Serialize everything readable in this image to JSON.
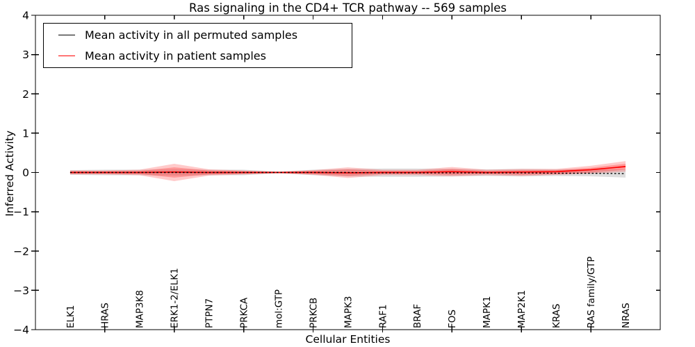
{
  "legend": {
    "position": "upper left",
    "entries": [
      {
        "label": "Mean activity in all permuted samples",
        "color": "#000000"
      },
      {
        "label": "Mean activity in patient samples",
        "color": "#ff0000"
      }
    ]
  },
  "chart_data": {
    "type": "line",
    "title": "Ras signaling in the CD4+ TCR pathway -- 569 samples",
    "xlabel": "Cellular Entities",
    "ylabel": "Inferred Activity",
    "ylim": [
      -4,
      4
    ],
    "xlim": [
      0,
      18
    ],
    "grid": false,
    "yticks": [
      -4,
      -3,
      -2,
      -1,
      0,
      1,
      2,
      3,
      4
    ],
    "ytick_labels": [
      "−4",
      "−3",
      "−2",
      "−1",
      "0",
      "1",
      "2",
      "3",
      "4"
    ],
    "x_tick_mark_positions": [
      2,
      4,
      6,
      8,
      10,
      12,
      14,
      16
    ],
    "categories": [
      "ELK1",
      "HRAS",
      "MAP3K8",
      "ERK1-2/ELK1",
      "PTPN7",
      "PRKCA",
      "mol:GTP",
      "PRKCB",
      "MAPK3",
      "RAF1",
      "BRAF",
      "FOS",
      "MAPK1",
      "MAP2K1",
      "KRAS",
      "RAS family/GTP",
      "NRAS"
    ],
    "series": [
      {
        "name": "Mean activity in all permuted samples",
        "color": "#000000",
        "linestyle": "dashed-overlay",
        "values": [
          0,
          0,
          0,
          0,
          0,
          0,
          0,
          0,
          0,
          -0.01,
          -0.01,
          -0.01,
          -0.01,
          -0.01,
          -0.02,
          -0.02,
          -0.03
        ]
      },
      {
        "name": "Mean activity in patient samples",
        "color": "#ff0000",
        "linestyle": "solid",
        "values": [
          0,
          0,
          0,
          0.01,
          0,
          0,
          0,
          0,
          -0.01,
          0,
          0,
          0.02,
          0,
          0.01,
          0.02,
          0.07,
          0.15
        ]
      }
    ],
    "bands": [
      {
        "name": "permuted-samples-spread",
        "color": "#b0b0b0",
        "opacity": 0.42,
        "upper": [
          0.06,
          0.07,
          0.07,
          0.08,
          0.07,
          0.07,
          0.02,
          0.07,
          0.09,
          0.1,
          0.1,
          0.09,
          0.08,
          0.09,
          0.08,
          0.08,
          0.08
        ],
        "lower": [
          -0.06,
          -0.07,
          -0.07,
          -0.08,
          -0.07,
          -0.07,
          -0.02,
          -0.07,
          -0.1,
          -0.11,
          -0.11,
          -0.1,
          -0.09,
          -0.1,
          -0.09,
          -0.1,
          -0.13
        ]
      },
      {
        "name": "patient-samples-spread-outer",
        "color": "#ff4040",
        "opacity": 0.28,
        "upper": [
          0.05,
          0.05,
          0.07,
          0.22,
          0.08,
          0.05,
          0.02,
          0.06,
          0.13,
          0.07,
          0.07,
          0.14,
          0.07,
          0.09,
          0.09,
          0.17,
          0.29
        ],
        "lower": [
          -0.05,
          -0.05,
          -0.07,
          -0.22,
          -0.08,
          -0.05,
          -0.02,
          -0.06,
          -0.14,
          -0.07,
          -0.07,
          -0.1,
          -0.07,
          -0.09,
          -0.06,
          -0.03,
          0.02
        ]
      },
      {
        "name": "patient-samples-spread-inner",
        "color": "#ff3030",
        "opacity": 0.33,
        "upper": [
          0.03,
          0.03,
          0.04,
          0.13,
          0.05,
          0.03,
          0.01,
          0.04,
          0.08,
          0.04,
          0.04,
          0.09,
          0.04,
          0.06,
          0.06,
          0.12,
          0.22
        ],
        "lower": [
          -0.03,
          -0.03,
          -0.04,
          -0.13,
          -0.05,
          -0.03,
          -0.01,
          -0.04,
          -0.09,
          -0.04,
          -0.04,
          -0.06,
          -0.04,
          -0.06,
          -0.04,
          0.0,
          0.07
        ]
      }
    ]
  }
}
